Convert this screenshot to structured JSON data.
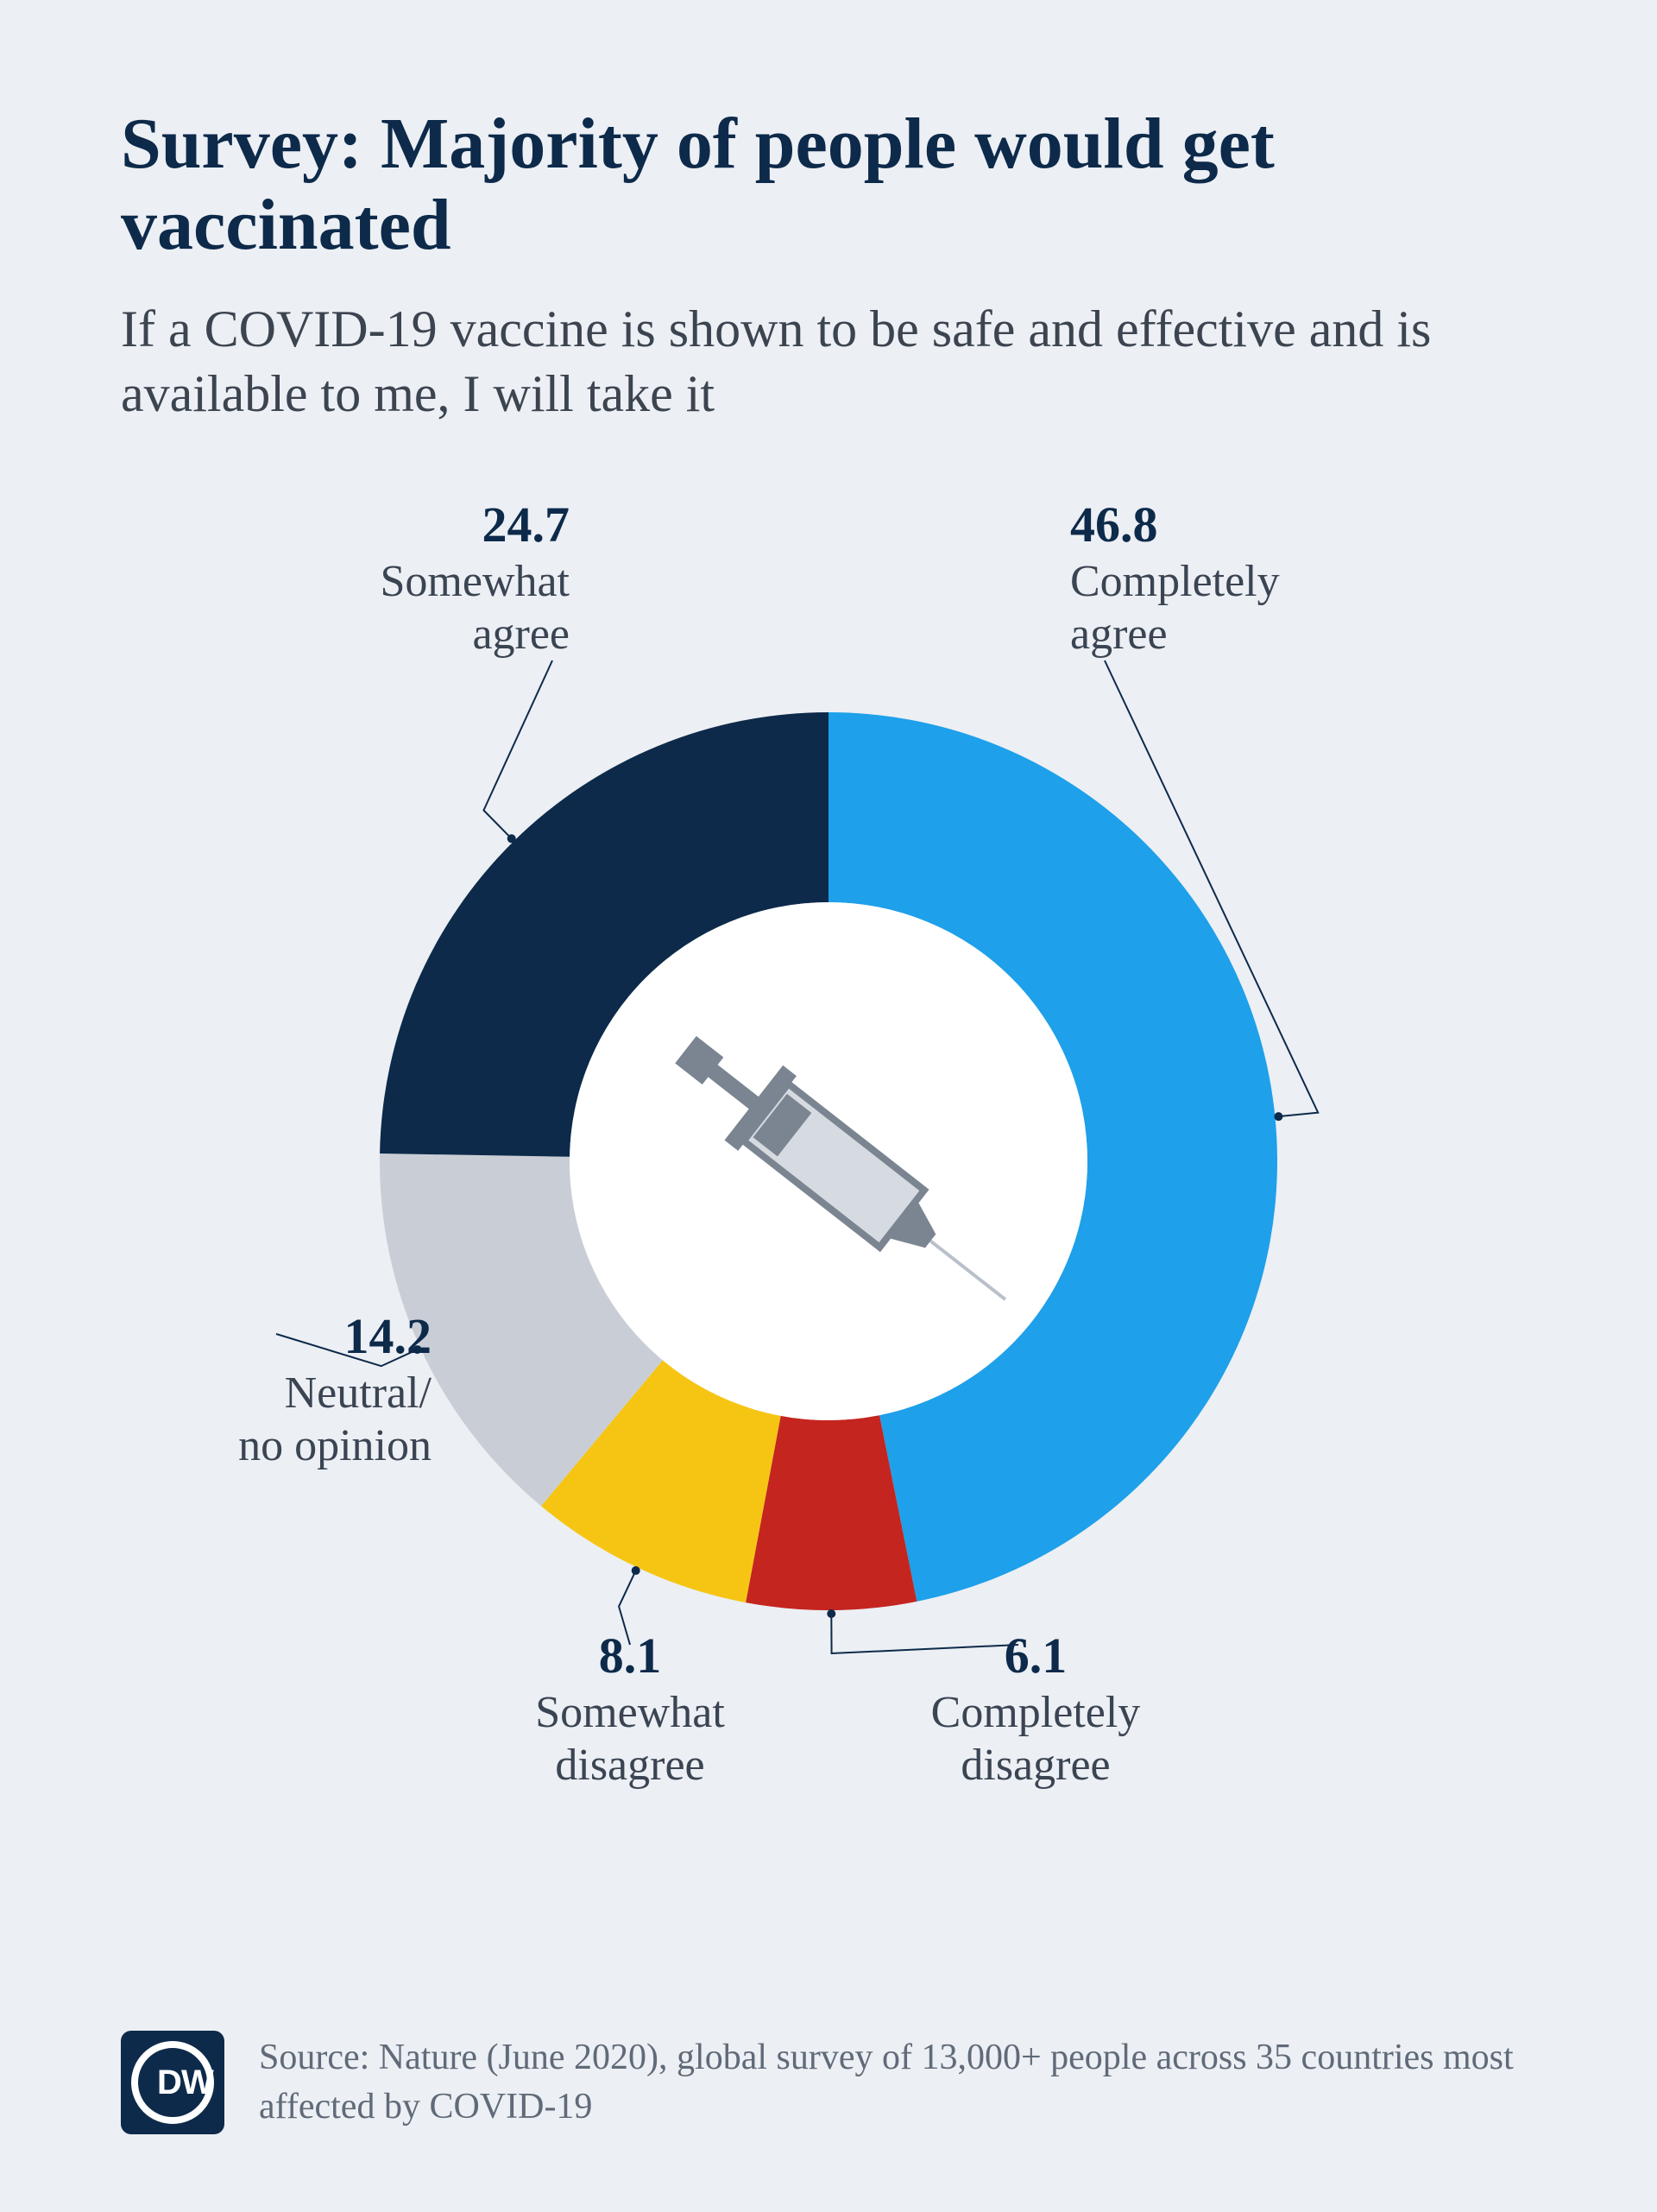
{
  "background_color": "#eceff4",
  "title": {
    "text": "Survey: Majority of people would get vaccinated",
    "color": "#0d2a4a",
    "font_size_pt": 63,
    "font_weight": "bold",
    "font_family": "Georgia, serif"
  },
  "subtitle": {
    "text": "If a COVID-19 vaccine is shown to be safe and effective and is available to me, I will take it",
    "color": "#3c4450",
    "font_size_pt": 45,
    "font_family": "Georgia, serif"
  },
  "chart": {
    "type": "donut",
    "start_angle_deg": 0,
    "direction": "clockwise",
    "outer_radius": 520,
    "inner_radius": 300,
    "center_fill": "#ffffff",
    "background_color": "#eceff4",
    "leader_color": "#0d2a4a",
    "leader_width": 2,
    "label_value_color": "#0d2a4a",
    "label_value_font_size_pt": 44,
    "label_value_font_weight": "bold",
    "label_text_color": "#3a4452",
    "label_text_font_size_pt": 39,
    "slices": [
      {
        "label": "Completely agree",
        "value": 46.8,
        "color": "#1ea0ea"
      },
      {
        "label": "Completely disagree",
        "value": 6.1,
        "color": "#c4251f"
      },
      {
        "label": "Somewhat disagree",
        "value": 8.1,
        "color": "#f6c514"
      },
      {
        "label": "Neutral/ no opinion",
        "value": 14.2,
        "color": "#c9ced6"
      },
      {
        "label": "Somewhat agree",
        "value": 24.7,
        "color": "#0d2a4a"
      }
    ],
    "center_icon": {
      "name": "syringe-icon",
      "body_color": "#d6dae1",
      "stroke_color": "#7b8591",
      "needle_color": "#b9c0ca"
    }
  },
  "labels": {
    "completely_agree": {
      "value": "46.8",
      "text": "Completely agree"
    },
    "somewhat_agree": {
      "value": "24.7",
      "text": "Somewhat agree"
    },
    "neutral": {
      "value": "14.2",
      "text": "Neutral/\nno opinion"
    },
    "somewhat_disagree": {
      "value": "8.1",
      "text": "Somewhat disagree"
    },
    "completely_disagree": {
      "value": "6.1",
      "text": "Completely disagree"
    }
  },
  "source": {
    "text": "Source: Nature (June 2020), global survey of 13,000+ people across 35 countries most affected by COVID-19",
    "color": "#606a78",
    "font_size_pt": 32
  },
  "logo": {
    "text": "DW",
    "bg": "#0d2a4a",
    "fg": "#ffffff"
  }
}
